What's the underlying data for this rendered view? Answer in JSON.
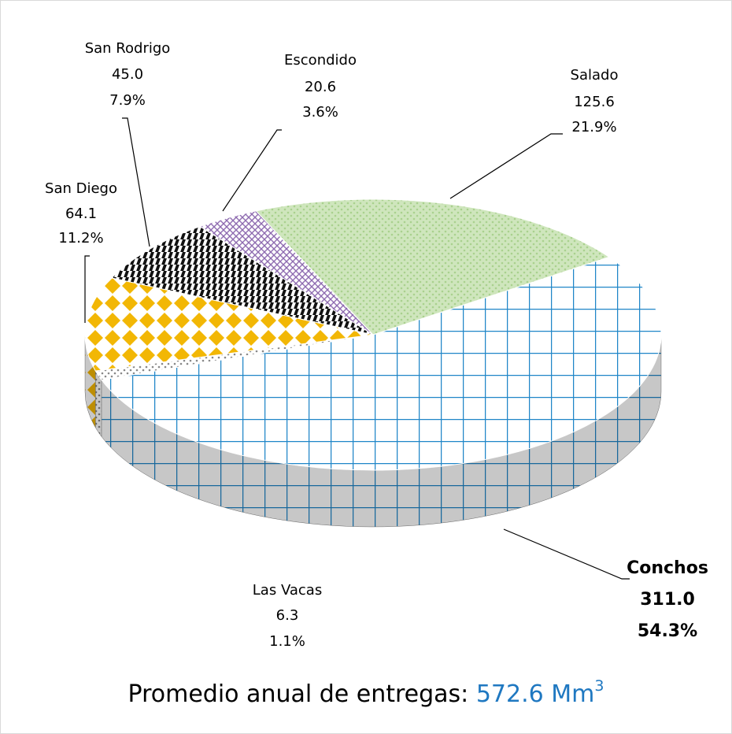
{
  "chart_data": {
    "type": "pie",
    "categories": [
      "Conchos",
      "Las Vacas",
      "San Diego",
      "San Rodrigo",
      "Escondido",
      "Salado"
    ],
    "values": [
      311.0,
      6.3,
      64.1,
      45.0,
      20.6,
      125.6
    ],
    "value_labels": [
      "311.0",
      "6.3",
      "64.1",
      "45.0",
      "20.6",
      "125.6"
    ],
    "percentages": [
      54.3,
      1.1,
      11.2,
      7.9,
      3.6,
      21.9
    ],
    "percentage_labels": [
      "54.3%",
      "1.1%",
      "11.2%",
      "7.9%",
      "3.6%",
      "21.9%"
    ],
    "colors": [
      "#1f86c8",
      "#888888",
      "#f2b705",
      "#111111",
      "#8e6bb0",
      "#a9d18e"
    ],
    "patterns": [
      "grid",
      "dots",
      "diamonds",
      "stripes",
      "lattice",
      "dots"
    ],
    "highlight_color": "#1f78c1",
    "total_prefix": "Promedio anual de entregas:",
    "total": 572.6,
    "total_unit": "Mm",
    "total_unit_exponent": "3"
  }
}
